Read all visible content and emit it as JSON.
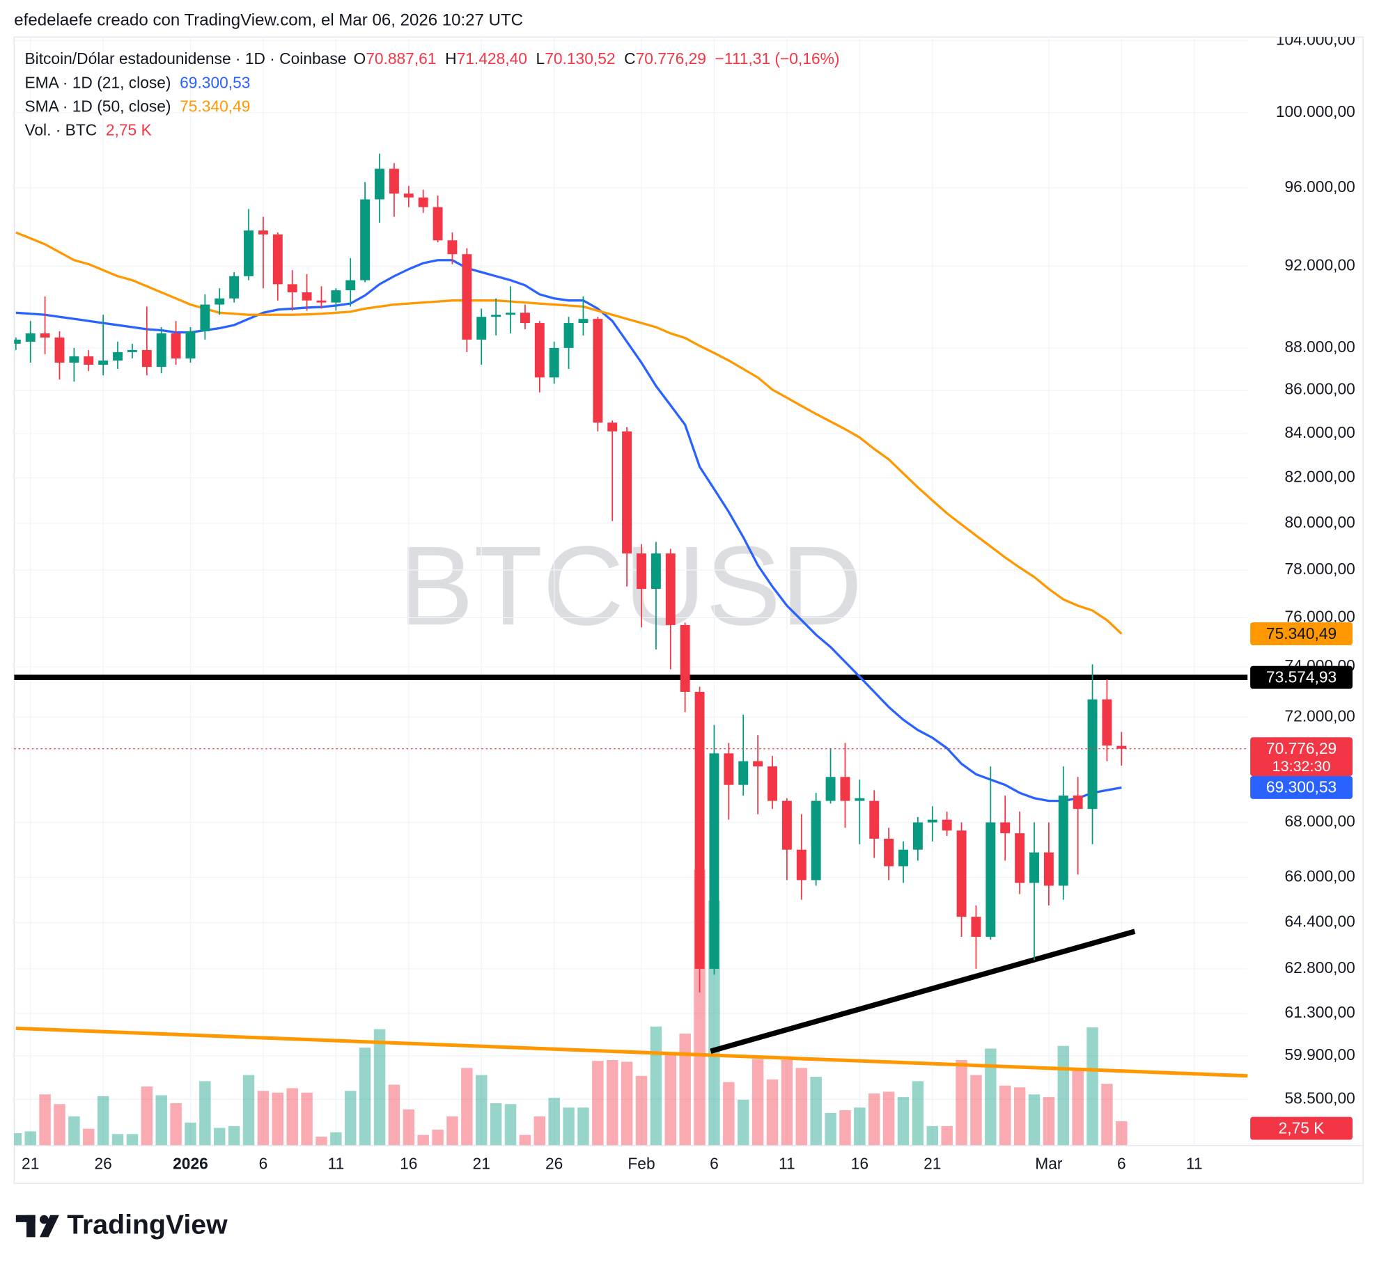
{
  "attribution": "efedelaefe creado con TradingView.com, el Mar 06, 2026 10:27 UTC",
  "logo": "TradingView",
  "chart_data": {
    "type": "candlestick",
    "watermark": "BTCUSD",
    "symbol": "Bitcoin/Dólar estadounidense · 1D · Coinbase",
    "ohlc_legend": [
      {
        "key": "O",
        "label": "70.887,61"
      },
      {
        "key": "H",
        "label": "71.428,40"
      },
      {
        "key": "L",
        "label": "70.130,52"
      },
      {
        "key": "C",
        "label": "70.776,29"
      }
    ],
    "change": "−111,31 (−0,16%)",
    "countdown": "13:32:30",
    "up_color": "#089981",
    "down_color": "#f23645",
    "log_scale": true,
    "grid": true,
    "ylim": [
      57050,
      104200
    ],
    "yticks": [
      {
        "value": 104000,
        "label": "104.000,00"
      },
      {
        "value": 100000,
        "label": "100.000,00"
      },
      {
        "value": 96000,
        "label": "96.000,00"
      },
      {
        "value": 92000,
        "label": "92.000,00"
      },
      {
        "value": 88000,
        "label": "88.000,00"
      },
      {
        "value": 86000,
        "label": "86.000,00"
      },
      {
        "value": 84000,
        "label": "84.000,00"
      },
      {
        "value": 82000,
        "label": "82.000,00"
      },
      {
        "value": 80000,
        "label": "80.000,00"
      },
      {
        "value": 78000,
        "label": "78.000,00"
      },
      {
        "value": 76000,
        "label": "76.000,00"
      },
      {
        "value": 74000,
        "label": "74.000,00"
      },
      {
        "value": 72000,
        "label": "72.000,00"
      },
      {
        "value": 68000,
        "label": "68.000,00"
      },
      {
        "value": 66000,
        "label": "66.000,00"
      },
      {
        "value": 64400,
        "label": "64.400,00"
      },
      {
        "value": 62800,
        "label": "62.800,00"
      },
      {
        "value": 61300,
        "label": "61.300,00"
      },
      {
        "value": 59900,
        "label": "59.900,00"
      },
      {
        "value": 58500,
        "label": "58.500,00"
      }
    ],
    "categories": [
      null,
      "21",
      null,
      null,
      null,
      null,
      "26",
      null,
      null,
      null,
      null,
      null,
      "2026",
      null,
      null,
      null,
      null,
      "6",
      null,
      null,
      null,
      null,
      "11",
      null,
      null,
      null,
      null,
      "16",
      null,
      null,
      null,
      null,
      "21",
      null,
      null,
      null,
      null,
      "26",
      null,
      null,
      null,
      null,
      null,
      "Feb",
      null,
      null,
      null,
      null,
      "6",
      null,
      null,
      null,
      null,
      "11",
      null,
      null,
      null,
      null,
      "16",
      null,
      null,
      null,
      null,
      "21",
      null,
      null,
      null,
      null,
      null,
      null,
      null,
      "Mar",
      null,
      null,
      null,
      null,
      "6",
      null,
      null,
      null,
      null,
      "11",
      null,
      null,
      null
    ],
    "open": [
      88200,
      88300,
      88700,
      88500,
      87300,
      87600,
      87200,
      87400,
      87800,
      87900,
      87100,
      88700,
      87500,
      88800,
      90100,
      90400,
      91500,
      93800,
      93600,
      91100,
      90700,
      90300,
      90200,
      90800,
      91300,
      95400,
      97000,
      95700,
      95500,
      95000,
      93300,
      92600,
      88400,
      89500,
      89600,
      89700,
      89200,
      86600,
      88000,
      89200,
      89400,
      84500,
      84100,
      78700,
      77200,
      78700,
      75700,
      73000,
      62800,
      70600,
      69400,
      70300,
      70100,
      68800,
      67000,
      65900,
      68800,
      69700,
      68800,
      68800,
      67400,
      66400,
      67000,
      68000,
      68100,
      67700,
      64600,
      63900,
      68000,
      67600,
      65800,
      66900,
      65700,
      69000,
      68500,
      72700,
      70887.61,
      null,
      null,
      null,
      null,
      null,
      null,
      null,
      null
    ],
    "high": [
      88500,
      89300,
      90500,
      88800,
      88000,
      87900,
      89600,
      88300,
      88200,
      90000,
      89000,
      89300,
      89000,
      90600,
      90900,
      91700,
      94900,
      94500,
      93700,
      91800,
      91600,
      91000,
      90900,
      92400,
      96300,
      97800,
      97300,
      96100,
      95900,
      95600,
      93700,
      92900,
      89900,
      90400,
      91000,
      90100,
      89300,
      88300,
      89500,
      90500,
      89500,
      84600,
      84300,
      79100,
      79200,
      78900,
      75800,
      73200,
      71700,
      71000,
      72100,
      71300,
      70500,
      68900,
      68300,
      69100,
      70800,
      71000,
      69600,
      69200,
      67800,
      67300,
      68200,
      68600,
      68400,
      68000,
      65000,
      70100,
      69000,
      68400,
      68000,
      68000,
      70100,
      69700,
      74100,
      73500,
      71428.4,
      null,
      null,
      null,
      null,
      null,
      null,
      null,
      null
    ],
    "low": [
      87900,
      87300,
      87700,
      86500,
      86400,
      86900,
      86700,
      87000,
      87500,
      86700,
      86800,
      87200,
      87300,
      88400,
      89600,
      90200,
      91300,
      90900,
      90300,
      89800,
      89800,
      89900,
      89800,
      90000,
      91200,
      94200,
      94500,
      95000,
      94700,
      93200,
      92100,
      87800,
      87200,
      88600,
      88700,
      88900,
      85900,
      86300,
      87000,
      88600,
      84100,
      80100,
      77300,
      75600,
      74700,
      73900,
      72200,
      62000,
      62600,
      68100,
      69000,
      68300,
      68500,
      65900,
      65200,
      65700,
      68700,
      67800,
      67200,
      66700,
      65900,
      65800,
      66600,
      67300,
      67500,
      63900,
      62800,
      63800,
      66600,
      65400,
      63100,
      65000,
      65200,
      66100,
      67200,
      70300,
      70130.52,
      null,
      null,
      null,
      null,
      null,
      null,
      null,
      null
    ],
    "close": [
      88400,
      88700,
      88500,
      87300,
      87600,
      87200,
      87400,
      87800,
      87900,
      87100,
      88700,
      87500,
      88800,
      90100,
      90400,
      91500,
      93800,
      93600,
      91100,
      90700,
      90300,
      90200,
      90800,
      91300,
      95400,
      97000,
      95700,
      95500,
      95000,
      93300,
      92600,
      88400,
      89500,
      89600,
      89700,
      89200,
      86600,
      88000,
      89200,
      89400,
      84500,
      84100,
      78700,
      77200,
      78700,
      75700,
      73000,
      62800,
      70600,
      69400,
      70300,
      70100,
      68800,
      67000,
      65900,
      68800,
      69700,
      68800,
      68900,
      67400,
      66400,
      67000,
      68000,
      68100,
      67700,
      64600,
      63900,
      68000,
      67600,
      65800,
      66900,
      65700,
      69000,
      68500,
      72700,
      70900,
      70776.29,
      null,
      null,
      null,
      null,
      null,
      null,
      null,
      null
    ],
    "close_label": "70.776,29",
    "volume_name": "Vol. · BTC",
    "vlim": [
      0,
      40
    ],
    "volume": [
      1.4,
      1.6,
      5.8,
      4.7,
      3.3,
      1.9,
      5.6,
      1.3,
      1.3,
      6.7,
      5.7,
      4.8,
      2.6,
      7.3,
      2.0,
      2.2,
      8.0,
      6.2,
      6.0,
      6.5,
      6.0,
      1.0,
      1.5,
      6.2,
      11.1,
      13.2,
      6.9,
      4.1,
      1.2,
      1.8,
      3.3,
      8.8,
      8.0,
      4.8,
      4.7,
      1.2,
      3.3,
      5.4,
      4.3,
      4.3,
      9.6,
      9.7,
      9.5,
      7.9,
      13.5,
      10.5,
      12.7,
      31.3,
      27.8,
      7.2,
      5.2,
      9.8,
      7.5,
      9.7,
      8.8,
      7.8,
      3.7,
      4.0,
      4.3,
      5.9,
      6.1,
      5.5,
      7.3,
      2.2,
      2.2,
      9.7,
      8.0,
      11.0,
      6.8,
      6.6,
      5.8,
      5.5,
      11.3,
      8.8,
      13.4,
      7.0,
      2.75,
      null,
      null,
      null,
      null,
      null,
      null,
      null,
      null
    ],
    "volume_label": "2,75 K",
    "series": [
      {
        "name": "EMA · 1D (21, close)",
        "color": "#2962ff",
        "last_label": "69.300,53",
        "values": [
          89700,
          89650,
          89600,
          89500,
          89400,
          89300,
          89200,
          89100,
          89000,
          88900,
          88850,
          88750,
          88750,
          88850,
          88950,
          89100,
          89400,
          89700,
          89850,
          89900,
          89950,
          89980,
          90050,
          90150,
          90550,
          91100,
          91500,
          91850,
          92150,
          92300,
          92300,
          91900,
          91700,
          91500,
          91300,
          91050,
          90600,
          90400,
          90300,
          90300,
          89900,
          89300,
          88300,
          87300,
          86200,
          85300,
          84400,
          82500,
          81500,
          80500,
          79400,
          78200,
          77300,
          76500,
          75900,
          75300,
          74800,
          74200,
          73600,
          73000,
          72400,
          71900,
          71500,
          71200,
          70800,
          70200,
          69800,
          69600,
          69400,
          69100,
          68900,
          68800,
          68800,
          68900,
          69100,
          69200,
          69300.53,
          null,
          null,
          null,
          null,
          null,
          null,
          null,
          null
        ]
      },
      {
        "name": "SMA · 1D (50, close)",
        "color": "#ff9800",
        "last_label": "75.340,49",
        "values": [
          93700,
          93400,
          93100,
          92700,
          92300,
          92100,
          91800,
          91500,
          91300,
          91000,
          90700,
          90400,
          90100,
          89900,
          89700,
          89650,
          89600,
          89600,
          89600,
          89600,
          89620,
          89650,
          89700,
          89750,
          89900,
          90000,
          90100,
          90150,
          90200,
          90250,
          90300,
          90300,
          90300,
          90300,
          90250,
          90200,
          90150,
          90100,
          90050,
          90000,
          89800,
          89600,
          89400,
          89200,
          89000,
          88700,
          88480,
          88100,
          87760,
          87400,
          87000,
          86600,
          86030,
          85650,
          85270,
          84900,
          84550,
          84200,
          83820,
          83300,
          82830,
          82200,
          81580,
          81000,
          80440,
          79950,
          79470,
          79000,
          78530,
          78100,
          77700,
          77200,
          76760,
          76500,
          76300,
          75900,
          75340.49,
          null,
          null,
          null,
          null,
          null,
          null,
          null,
          null
        ]
      }
    ],
    "hline": {
      "value": 73574.93,
      "label": "73.574,93",
      "color": "#000000"
    }
  }
}
